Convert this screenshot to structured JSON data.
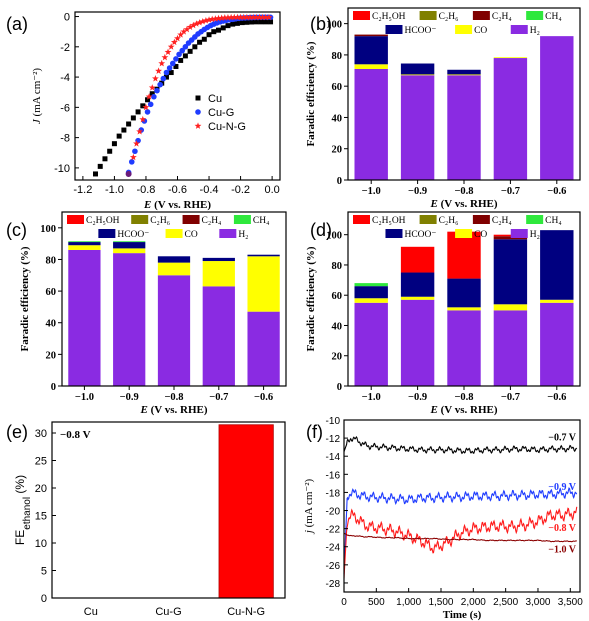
{
  "chart_data": [
    {
      "panel": "(a)",
      "type": "scatter",
      "xlabel_prefix": "E",
      "xlabel_suffix": " (V vs. RHE)",
      "ylabel_prefix": "J",
      "ylabel_suffix": " (mA cm⁻²)",
      "xlim": [
        -1.25,
        0.05
      ],
      "ylim": [
        -10.8,
        0.3
      ],
      "xticks": [
        -1.2,
        -1.0,
        -0.8,
        -0.6,
        -0.4,
        -0.2,
        0.0
      ],
      "xtick_labels": [
        "-1.2",
        "-1.0",
        "-0.8",
        "-0.6",
        "-0.4",
        "-0.2",
        "0.0"
      ],
      "yticks": [
        0,
        -2,
        -4,
        -6,
        -8,
        -10
      ],
      "ytick_labels": [
        "0",
        "-2",
        "-4",
        "-6",
        "-8",
        "-10"
      ],
      "legend_position": "center-right",
      "series": [
        {
          "name": "Cu",
          "marker": "square",
          "color": "#000000",
          "x": [
            -1.12,
            -1.09,
            -1.06,
            -1.03,
            -1.0,
            -0.97,
            -0.94,
            -0.91,
            -0.88,
            -0.85,
            -0.82,
            -0.79,
            -0.76,
            -0.73,
            -0.7,
            -0.67,
            -0.64,
            -0.61,
            -0.58,
            -0.55,
            -0.52,
            -0.49,
            -0.46,
            -0.43,
            -0.4,
            -0.37,
            -0.34,
            -0.31,
            -0.28,
            -0.25,
            -0.22,
            -0.19,
            -0.16,
            -0.13,
            -0.1,
            -0.07,
            -0.04,
            -0.01
          ],
          "y": [
            -10.4,
            -9.9,
            -9.4,
            -8.9,
            -8.4,
            -7.9,
            -7.5,
            -7.1,
            -6.7,
            -6.3,
            -5.9,
            -5.5,
            -5.1,
            -4.8,
            -4.4,
            -4.0,
            -3.7,
            -3.3,
            -2.9,
            -2.6,
            -2.3,
            -2.0,
            -1.7,
            -1.5,
            -1.2,
            -1.0,
            -0.9,
            -0.75,
            -0.6,
            -0.5,
            -0.45,
            -0.4,
            -0.38,
            -0.36,
            -0.35,
            -0.35,
            -0.35,
            -0.35
          ]
        },
        {
          "name": "Cu-G",
          "marker": "circle",
          "color": "#1f3cff",
          "x": [
            -0.91,
            -0.89,
            -0.87,
            -0.85,
            -0.83,
            -0.81,
            -0.79,
            -0.77,
            -0.75,
            -0.73,
            -0.71,
            -0.69,
            -0.67,
            -0.65,
            -0.63,
            -0.61,
            -0.59,
            -0.57,
            -0.55,
            -0.53,
            -0.51,
            -0.49,
            -0.47,
            -0.45,
            -0.43,
            -0.41,
            -0.39,
            -0.37,
            -0.35,
            -0.33,
            -0.31,
            -0.29,
            -0.27,
            -0.25,
            -0.23,
            -0.21,
            -0.19,
            -0.17,
            -0.15,
            -0.13,
            -0.11,
            -0.09,
            -0.07,
            -0.05,
            -0.03,
            -0.01
          ],
          "y": [
            -10.3,
            -9.6,
            -8.9,
            -8.2,
            -7.5,
            -6.9,
            -6.3,
            -5.8,
            -5.3,
            -4.9,
            -4.5,
            -4.1,
            -3.7,
            -3.4,
            -3.1,
            -2.8,
            -2.5,
            -2.25,
            -2.0,
            -1.75,
            -1.55,
            -1.35,
            -1.15,
            -1.0,
            -0.85,
            -0.72,
            -0.6,
            -0.5,
            -0.42,
            -0.35,
            -0.3,
            -0.25,
            -0.21,
            -0.18,
            -0.15,
            -0.12,
            -0.1,
            -0.09,
            -0.08,
            -0.07,
            -0.06,
            -0.06,
            -0.05,
            -0.05,
            -0.05,
            -0.05
          ]
        },
        {
          "name": "Cu-N-G",
          "marker": "star",
          "color": "#ff2020",
          "x": [
            -0.88,
            -0.86,
            -0.84,
            -0.82,
            -0.8,
            -0.78,
            -0.76,
            -0.74,
            -0.72,
            -0.7,
            -0.68,
            -0.66,
            -0.64,
            -0.62,
            -0.6,
            -0.58,
            -0.56,
            -0.54,
            -0.52,
            -0.5,
            -0.48,
            -0.46,
            -0.44,
            -0.42,
            -0.4,
            -0.38,
            -0.36,
            -0.34,
            -0.32,
            -0.3,
            -0.28,
            -0.26,
            -0.24,
            -0.22,
            -0.2,
            -0.18,
            -0.16,
            -0.14,
            -0.12,
            -0.1,
            -0.08,
            -0.06,
            -0.04,
            -0.02
          ],
          "y": [
            -9.3,
            -8.4,
            -7.6,
            -6.8,
            -6.0,
            -5.3,
            -4.7,
            -4.1,
            -3.6,
            -3.1,
            -2.7,
            -2.35,
            -2.0,
            -1.7,
            -1.45,
            -1.2,
            -1.0,
            -0.85,
            -0.7,
            -0.58,
            -0.48,
            -0.4,
            -0.33,
            -0.27,
            -0.22,
            -0.18,
            -0.15,
            -0.12,
            -0.1,
            -0.08,
            -0.07,
            -0.06,
            -0.05,
            -0.05,
            -0.05,
            -0.05,
            -0.05,
            -0.05,
            -0.05,
            -0.05,
            -0.05,
            -0.05,
            -0.05,
            -0.05
          ]
        }
      ]
    },
    {
      "panel": "(b)",
      "type": "bar",
      "stacked": true,
      "ylabel": "Faradic efficiency (%)",
      "xlabel_prefix": "E",
      "xlabel_suffix": "  (V vs. RHE)",
      "categories": [
        "−1.0",
        "−0.9",
        "−0.8",
        "−0.7",
        "−0.6"
      ],
      "ylim": [
        0,
        110
      ],
      "yticks": [
        0,
        20,
        40,
        60,
        80,
        100
      ],
      "ytick_labels": [
        "0",
        "20",
        "40",
        "60",
        "80",
        "100"
      ],
      "series": [
        {
          "name": "H₂",
          "color": "#8a2be2",
          "values": [
            71,
            67,
            67,
            78,
            92
          ]
        },
        {
          "name": "CO",
          "color": "#ffff00",
          "values": [
            3,
            0.5,
            0.5,
            0.5,
            0
          ]
        },
        {
          "name": "HCOO⁻",
          "color": "#000080",
          "values": [
            18,
            7,
            3,
            0,
            0
          ]
        },
        {
          "name": "CH₄",
          "color": "#2ee83c",
          "values": [
            0,
            0,
            0,
            0,
            0
          ]
        },
        {
          "name": "C₂H₄",
          "color": "#800000",
          "values": [
            1,
            0,
            0,
            0,
            0
          ]
        },
        {
          "name": "C₂H₆",
          "color": "#808000",
          "values": [
            0,
            0,
            0,
            0,
            0
          ]
        },
        {
          "name": "C₂H₅OH",
          "color": "#ff0000",
          "values": [
            0,
            0,
            0,
            0,
            0
          ]
        }
      ],
      "legend_row1": [
        "C₂H₅OH",
        "C₂H₆",
        "C₂H₄",
        "CH₄"
      ],
      "legend_row2": [
        "HCOO⁻",
        "CO",
        "H₂"
      ]
    },
    {
      "panel": "(c)",
      "type": "bar",
      "stacked": true,
      "ylabel": "Faradic efficiency (%)",
      "xlabel_prefix": "E",
      "xlabel_suffix": "  (V vs. RHE)",
      "categories": [
        "−1.0",
        "−0.9",
        "−0.8",
        "−0.7",
        "−0.6"
      ],
      "ylim": [
        0,
        110
      ],
      "yticks": [
        0,
        20,
        40,
        60,
        80,
        100
      ],
      "ytick_labels": [
        "0",
        "20",
        "40",
        "60",
        "80",
        "100"
      ],
      "series": [
        {
          "name": "H₂",
          "color": "#8a2be2",
          "values": [
            86,
            84,
            70,
            63,
            47
          ]
        },
        {
          "name": "CO",
          "color": "#ffff00",
          "values": [
            3,
            3,
            8,
            16,
            35
          ]
        },
        {
          "name": "HCOO⁻",
          "color": "#000080",
          "values": [
            2,
            4,
            4,
            2,
            1
          ]
        },
        {
          "name": "CH₄",
          "color": "#2ee83c",
          "values": [
            0.5,
            0.5,
            0,
            0,
            0
          ]
        },
        {
          "name": "C₂H₄",
          "color": "#800000",
          "values": [
            0,
            0,
            0,
            0,
            0
          ]
        },
        {
          "name": "C₂H₆",
          "color": "#808000",
          "values": [
            0,
            0,
            0,
            0,
            0
          ]
        },
        {
          "name": "C₂H₅OH",
          "color": "#ff0000",
          "values": [
            0,
            0,
            0,
            0,
            0
          ]
        }
      ],
      "legend_row1": [
        "C₂H₅OH",
        "C₂H₆",
        "C₂H₄",
        "CH₄"
      ],
      "legend_row2": [
        "HCOO⁻",
        "CO",
        "H₂"
      ]
    },
    {
      "panel": "(d)",
      "type": "bar",
      "stacked": true,
      "ylabel": "Faradic efficiency (%)",
      "xlabel_prefix": "E",
      "xlabel_suffix": "  (V vs. RHE)",
      "categories": [
        "−1.0",
        "−0.9",
        "−0.8",
        "−0.7",
        "−0.6"
      ],
      "ylim": [
        0,
        115
      ],
      "yticks": [
        0,
        20,
        40,
        60,
        80,
        100
      ],
      "ytick_labels": [
        "0",
        "20",
        "40",
        "60",
        "80",
        "100"
      ],
      "series": [
        {
          "name": "H₂",
          "color": "#8a2be2",
          "values": [
            55,
            57,
            50,
            50,
            55
          ]
        },
        {
          "name": "CO",
          "color": "#ffff00",
          "values": [
            3,
            2,
            2,
            4,
            2
          ]
        },
        {
          "name": "HCOO⁻",
          "color": "#000080",
          "values": [
            8,
            16,
            19,
            43,
            46
          ]
        },
        {
          "name": "CH₄",
          "color": "#2ee83c",
          "values": [
            2,
            0,
            0,
            0,
            0
          ]
        },
        {
          "name": "C₂H₄",
          "color": "#800000",
          "values": [
            0,
            0,
            0,
            2,
            0
          ]
        },
        {
          "name": "C₂H₆",
          "color": "#808000",
          "values": [
            0,
            0,
            0,
            0,
            0
          ]
        },
        {
          "name": "C₂H₅OH",
          "color": "#ff0000",
          "values": [
            0,
            17,
            31,
            1,
            0
          ]
        }
      ],
      "legend_row1": [
        "C₂H₅OH",
        "C₂H₆",
        "C₂H₄",
        "CH₄"
      ],
      "legend_row2": [
        "HCOO⁻",
        "CO",
        "H₂"
      ]
    },
    {
      "panel": "(e)",
      "type": "bar",
      "ylabel_main": "FE",
      "ylabel_sub": "ethanol",
      "ylabel_unit": " (%)",
      "annotation": "−0.8 V",
      "categories": [
        "Cu",
        "Cu-G",
        "Cu-N-G"
      ],
      "values": [
        0,
        0,
        31.5
      ],
      "color": "#ff0000",
      "ylim": [
        0,
        32
      ],
      "yticks": [
        0,
        5,
        10,
        15,
        20,
        25,
        30
      ],
      "ytick_labels": [
        "0",
        "5",
        "10",
        "15",
        "20",
        "25",
        "30"
      ]
    },
    {
      "panel": "(f)",
      "type": "line",
      "xlabel": "Time (s)",
      "ylabel_prefix": "j",
      "ylabel_suffix": " (mA cm⁻²)",
      "xlim": [
        0,
        3650
      ],
      "ylim": [
        -29,
        -10
      ],
      "xticks": [
        0,
        500,
        1000,
        1500,
        2000,
        2500,
        3000,
        3500
      ],
      "xtick_labels": [
        "0",
        "500",
        "1,000",
        "1,500",
        "2,000",
        "2,500",
        "3,000",
        "3,500"
      ],
      "yticks": [
        -10,
        -12,
        -14,
        -16,
        -18,
        -20,
        -22,
        -24,
        -26,
        -28
      ],
      "ytick_labels": [
        "-10",
        "-12",
        "-14",
        "-16",
        "-18",
        "-20",
        "-22",
        "-24",
        "-26",
        "-28"
      ],
      "series": [
        {
          "name": "−0.7 V",
          "color": "#000000",
          "x": [
            0,
            50,
            100,
            200,
            300,
            400,
            600,
            800,
            1000,
            1200,
            1400,
            1600,
            1800,
            2000,
            2200,
            2400,
            2600,
            2800,
            3000,
            3200,
            3400,
            3600
          ],
          "y": [
            -13.5,
            -12.5,
            -12.0,
            -12.2,
            -12.7,
            -12.9,
            -13.0,
            -13.1,
            -13.2,
            -13.3,
            -13.3,
            -13.3,
            -13.4,
            -13.4,
            -13.3,
            -13.3,
            -13.2,
            -13.2,
            -13.3,
            -13.2,
            -13.2,
            -13.1
          ]
        },
        {
          "name": "−0.9 V",
          "color": "#1f3cff",
          "x": [
            0,
            50,
            100,
            200,
            300,
            400,
            600,
            800,
            1000,
            1200,
            1400,
            1600,
            1800,
            2000,
            2200,
            2400,
            2600,
            2800,
            3000,
            3200,
            3400,
            3600
          ],
          "y": [
            -27.0,
            -18.5,
            -18.0,
            -18.2,
            -18.4,
            -18.5,
            -18.6,
            -18.7,
            -18.8,
            -18.6,
            -18.6,
            -18.5,
            -18.5,
            -18.4,
            -18.4,
            -18.4,
            -18.3,
            -18.3,
            -18.2,
            -18.2,
            -18.1,
            -18.0
          ]
        },
        {
          "name": "−0.8 V",
          "color": "#ff1a1a",
          "x": [
            0,
            50,
            100,
            200,
            300,
            400,
            600,
            800,
            1000,
            1200,
            1400,
            1600,
            1800,
            2000,
            2200,
            2400,
            2600,
            2800,
            3000,
            3200,
            3400,
            3600
          ],
          "y": [
            -27.5,
            -21.0,
            -20.5,
            -20.8,
            -21.5,
            -21.8,
            -22.0,
            -22.3,
            -22.8,
            -23.4,
            -24.2,
            -23.5,
            -22.5,
            -22.0,
            -21.8,
            -21.7,
            -21.8,
            -21.6,
            -21.2,
            -20.5,
            -20.5,
            -20.2
          ]
        },
        {
          "name": "−1.0 V",
          "color": "#8b0000",
          "x": [
            0,
            50,
            100,
            200,
            300,
            400,
            600,
            800,
            1000,
            1200,
            1400,
            1600,
            1800,
            2000,
            2200,
            2400,
            2600,
            2800,
            3000,
            3200,
            3400,
            3600
          ],
          "y": [
            -22.5,
            -22.7,
            -22.8,
            -22.8,
            -22.9,
            -22.9,
            -23.0,
            -23.0,
            -23.1,
            -23.1,
            -23.1,
            -23.2,
            -23.2,
            -23.2,
            -23.3,
            -23.3,
            -23.3,
            -23.3,
            -23.3,
            -23.4,
            -23.4,
            -23.4
          ]
        }
      ],
      "noise_amplitude": [
        0.35,
        0.55,
        0.7,
        0.05
      ]
    }
  ]
}
